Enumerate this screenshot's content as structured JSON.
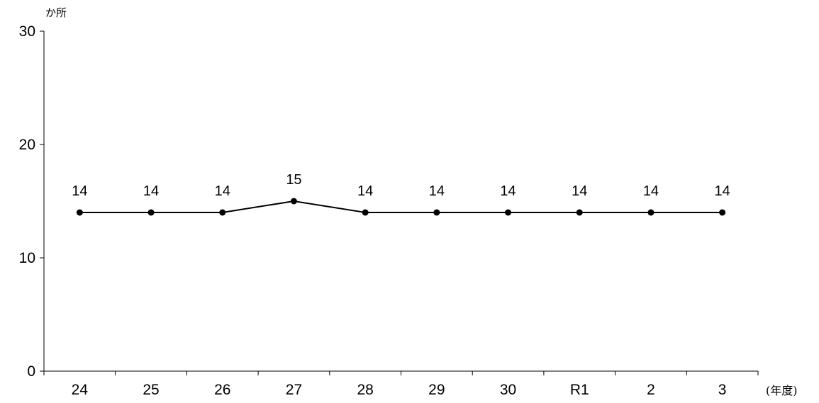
{
  "chart_data": {
    "type": "line",
    "title": "",
    "y_unit": "か所",
    "x_unit": "(年度)",
    "categories": [
      "24",
      "25",
      "26",
      "27",
      "28",
      "29",
      "30",
      "R1",
      "2",
      "3"
    ],
    "series": [
      {
        "values": [
          14,
          14,
          14,
          15,
          14,
          14,
          14,
          14,
          14,
          14
        ],
        "color": "#000000"
      }
    ],
    "data_labels": [
      "14",
      "14",
      "14",
      "15",
      "14",
      "14",
      "14",
      "14",
      "14",
      "14"
    ],
    "yticks": [
      0,
      10,
      20,
      30
    ],
    "ylim": [
      0,
      30
    ],
    "grid": false,
    "legend": "none"
  }
}
